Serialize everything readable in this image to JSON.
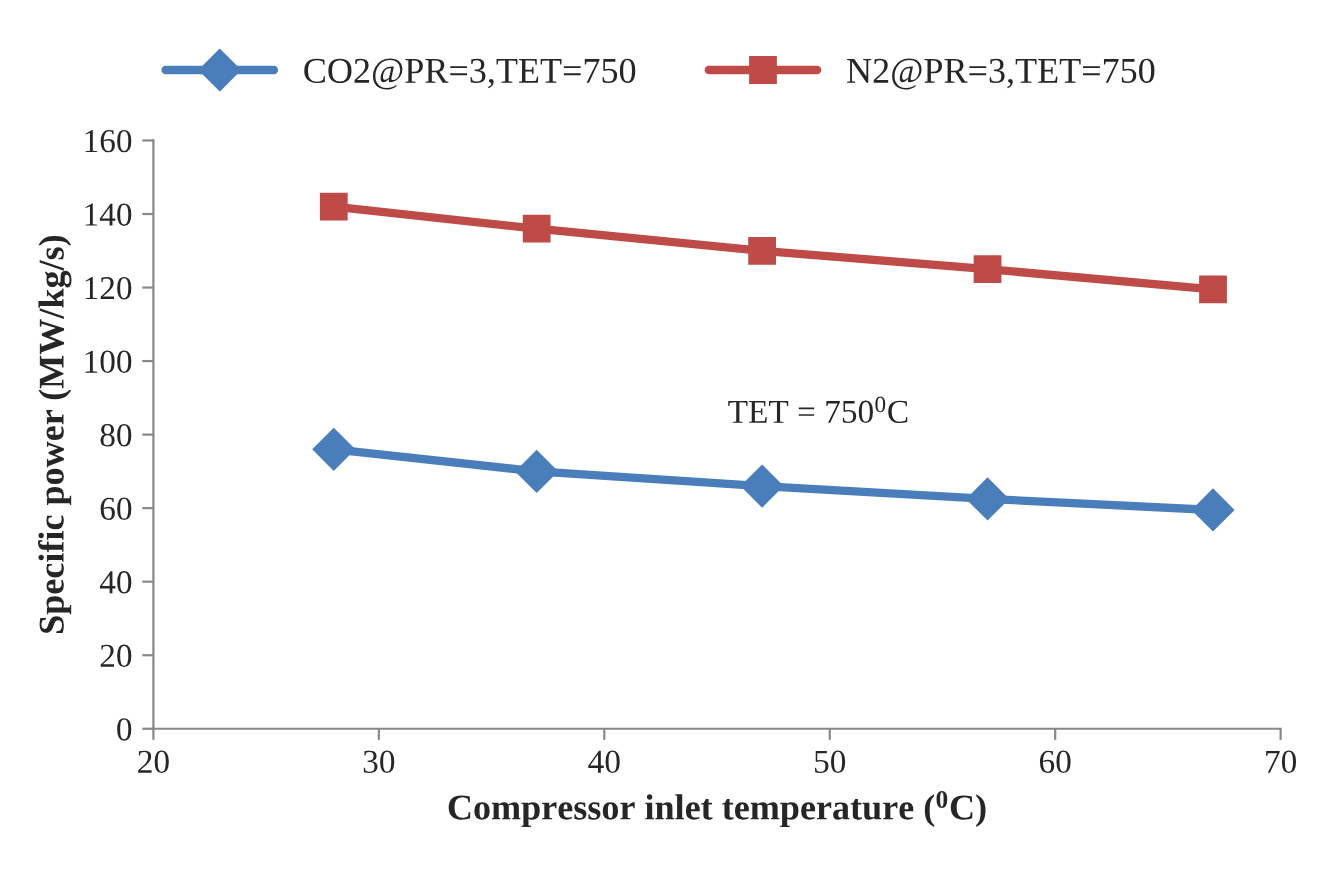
{
  "chart_data": {
    "type": "line",
    "xlabel": "Compressor inlet temperature ($^{0}$C)",
    "ylabel": "Specific power (MW/kg/s)",
    "x": [
      28,
      37,
      47,
      57,
      67
    ],
    "series": [
      {
        "name": "CO2@PR=3,TET=750",
        "color": "#4a7ebb",
        "values": [
          76,
          70,
          66,
          62.5,
          59.5
        ],
        "marker": "diamond"
      },
      {
        "name": "N2@PR=3,TET=750",
        "color": "#be4b48",
        "values": [
          142,
          136,
          130,
          125,
          119.5
        ],
        "marker": "square"
      }
    ],
    "xlim": [
      20,
      70
    ],
    "xticks": [
      20,
      30,
      40,
      50,
      60,
      70
    ],
    "ylim": [
      0,
      160
    ],
    "yticks": [
      0,
      20,
      40,
      60,
      80,
      100,
      120,
      140,
      160
    ],
    "annotations": [
      "TET = 750$^{0}$C"
    ],
    "grid": false,
    "legend": "top",
    "line_style": "solid"
  }
}
